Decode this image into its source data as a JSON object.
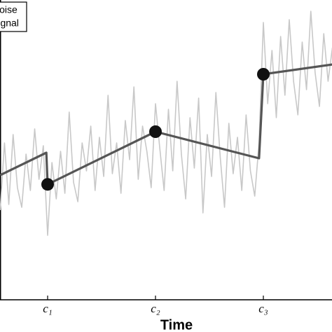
{
  "chart_data": {
    "type": "line",
    "x_label": "Time",
    "xlim": [
      0,
      100
    ],
    "ylim": [
      0,
      10.7
    ],
    "xticks": [
      {
        "value": 25,
        "label": "c₁"
      },
      {
        "value": 50,
        "label": "c₂"
      },
      {
        "value": 75,
        "label": "c₃"
      }
    ],
    "legend": "upper left",
    "series": [
      {
        "name": "Noise",
        "color": "#c8c8c8",
        "x": [
          14,
          15,
          16,
          17,
          18,
          19,
          20,
          21,
          22,
          23,
          24,
          25,
          26,
          27,
          28,
          29,
          30,
          31,
          32,
          33,
          34,
          35,
          36,
          37,
          38,
          39,
          40,
          41,
          42,
          43,
          44,
          45,
          46,
          47,
          48,
          49,
          50,
          51,
          52,
          53,
          54,
          55,
          56,
          57,
          58,
          59,
          60,
          61,
          62,
          63,
          64,
          65,
          66,
          67,
          68,
          69,
          70,
          71,
          72,
          73,
          74,
          75,
          76,
          77,
          78,
          79,
          80,
          81,
          82,
          83,
          84,
          85,
          86,
          87,
          88,
          89,
          90,
          91
        ],
        "values": [
          3.2,
          5.6,
          3.4,
          5.9,
          4.0,
          3.3,
          5.2,
          3.9,
          6.1,
          4.3,
          5.5,
          2.3,
          4.9,
          3.6,
          5.3,
          3.8,
          6.7,
          4.2,
          3.5,
          5.6,
          4.6,
          6.2,
          3.9,
          5.8,
          4.4,
          7.3,
          4.5,
          5.6,
          3.8,
          6.4,
          5.0,
          7.6,
          4.3,
          6.2,
          5.3,
          4.0,
          7.0,
          5.4,
          3.9,
          6.8,
          4.6,
          7.8,
          5.2,
          3.6,
          6.5,
          4.7,
          7.2,
          3.1,
          5.9,
          4.4,
          7.4,
          5.1,
          3.3,
          6.3,
          4.5,
          5.8,
          3.9,
          6.6,
          4.6,
          3.7,
          5.6,
          9.9,
          7.0,
          8.9,
          6.5,
          9.4,
          7.3,
          10.0,
          7.8,
          6.6,
          9.2,
          7.5,
          10.3,
          8.1,
          6.9,
          9.5,
          7.8,
          9.0
        ]
      },
      {
        "name": "Signal",
        "color": "#555555",
        "x": [
          14,
          24.7,
          25,
          50,
          74,
          75,
          91
        ],
        "values": [
          4.45,
          5.25,
          4.12,
          6.0,
          5.05,
          8.05,
          8.4
        ]
      }
    ],
    "change_points": {
      "color": "#111111",
      "x": [
        25,
        50,
        75
      ],
      "values": [
        4.12,
        6.0,
        8.05
      ]
    }
  }
}
